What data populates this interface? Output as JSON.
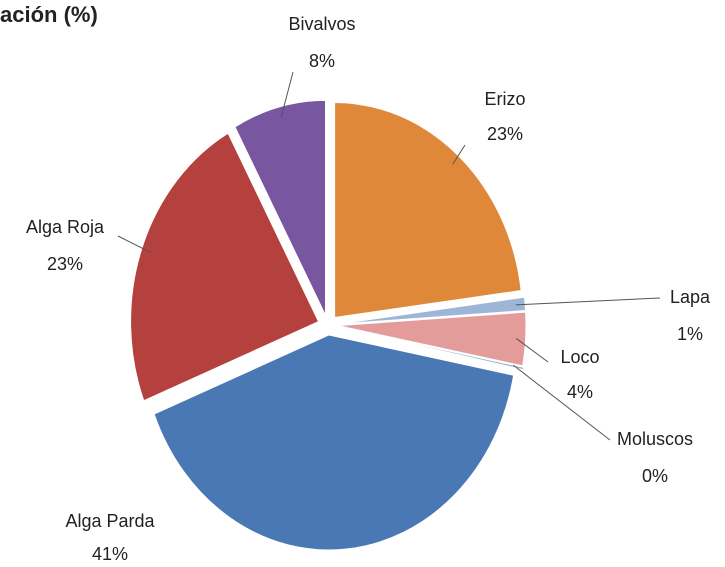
{
  "chart_data": {
    "type": "pie",
    "title": "ación (%)",
    "categories": [
      "Erizo",
      "Lapa",
      "Loco",
      "Moluscos",
      "Alga Parda",
      "Alga Roja",
      "Bivalvos"
    ],
    "values": [
      23,
      1,
      4,
      0,
      41,
      23,
      8
    ],
    "value_labels": [
      "23%",
      "1%",
      "4%",
      "0%",
      "41%",
      "23%",
      "8%"
    ],
    "colors": [
      "#e0883a",
      "#9db6d8",
      "#e49c9b",
      "#8fb0d0",
      "#4a78b5",
      "#b5413e",
      "#7856a0"
    ]
  }
}
